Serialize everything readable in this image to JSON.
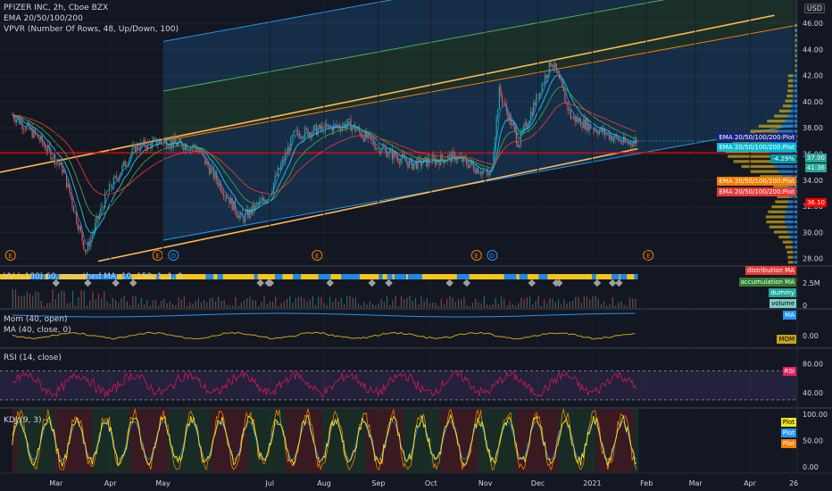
{
  "header": {
    "symbol_line": "PFIZER INC, 2h, Cboe BZX",
    "ema_line": "EMA 20/50/100/200",
    "vpvr_line": "VPVR (Number Of Rows, 48, Up/Down, 100)",
    "currency": "USD"
  },
  "indicators": {
    "volume_line": "VV (c180) 60, smoothed MA, 10, 150, 1, 1, 0",
    "mom_line": "Mom (40, open)",
    "ma_line": "MA (40, close, 0)",
    "rsi_line": "RSI (14, close)",
    "kdj_line": "KDJ (9, 3)"
  },
  "right_tags": {
    "ema1": "EMA 20/50/100/200:Plot",
    "ema2": "EMA 20/50/100/200:Plot",
    "pct": "-4.29%",
    "price": "37.00",
    "time": "41:36",
    "ema3": "EMA 20/50/100/200:Plot",
    "ema4": "EMA 20/50/100/200:Plot",
    "red": "36.10",
    "dist": "distribution MA",
    "accum": "accumulation MA",
    "dummy": "dummy",
    "vol": "volume",
    "ma": "MA",
    "mom": "MOM",
    "rsi": "RSI",
    "plot1": "Plot",
    "plot2": "Plot",
    "plot3": "Plot"
  },
  "colors": {
    "background": "#131722",
    "candle_up": "#26a69a",
    "candle_down": "#ef5350",
    "channel": "#2196f3",
    "trend": "#f57c00",
    "support": "#ff0000"
  },
  "chart_data": [
    {
      "type": "candlestick",
      "title": "PFIZER INC, 2h, Cboe BZX",
      "y_axis_ticks": [
        "46.00",
        "44.00",
        "42.00",
        "40.00",
        "38.00",
        "36.00",
        "34.00",
        "32.00",
        "30.00",
        "28.00"
      ],
      "ylim": [
        27.5,
        47.5
      ],
      "x_axis_ticks": [
        "Mar",
        "Apr",
        "May",
        "Jul",
        "Aug",
        "Sep",
        "Oct",
        "Nov",
        "Dec",
        "2021",
        "Feb",
        "Mar",
        "Apr",
        "26"
      ],
      "anchors": [
        {
          "x": "2020-02-05",
          "y": 39.0
        },
        {
          "x": "2020-02-20",
          "y": 37.2
        },
        {
          "x": "2020-03-05",
          "y": 34.8
        },
        {
          "x": "2020-03-18",
          "y": 28.5
        },
        {
          "x": "2020-03-30",
          "y": 33.0
        },
        {
          "x": "2020-04-15",
          "y": 36.5
        },
        {
          "x": "2020-05-01",
          "y": 37.0
        },
        {
          "x": "2020-05-20",
          "y": 36.5
        },
        {
          "x": "2020-06-15",
          "y": 31.0
        },
        {
          "x": "2020-06-30",
          "y": 32.8
        },
        {
          "x": "2020-07-15",
          "y": 37.5
        },
        {
          "x": "2020-08-15",
          "y": 38.3
        },
        {
          "x": "2020-09-01",
          "y": 36.5
        },
        {
          "x": "2020-09-20",
          "y": 35.2
        },
        {
          "x": "2020-10-15",
          "y": 35.8
        },
        {
          "x": "2020-11-04",
          "y": 34.3
        },
        {
          "x": "2020-11-09",
          "y": 40.8
        },
        {
          "x": "2020-11-20",
          "y": 36.8
        },
        {
          "x": "2020-12-09",
          "y": 43.2
        },
        {
          "x": "2020-12-20",
          "y": 38.8
        },
        {
          "x": "2021-01-05",
          "y": 37.8
        },
        {
          "x": "2021-01-20",
          "y": 36.8
        },
        {
          "x": "2021-01-27",
          "y": 37.0
        }
      ],
      "last_price": 37.0,
      "horizontal_level": 36.1,
      "channel": {
        "start": {
          "x": "2020-05-01",
          "y": 37.0
        },
        "end": {
          "x": "2021-04-22",
          "y": 45.7
        },
        "offset": 7.6,
        "extends_right": true
      },
      "trendlines": [
        {
          "start": {
            "x": "2020-01-29",
            "y": 34.6
          },
          "end": {
            "x": "2021-04-15",
            "y": 46.6
          }
        },
        {
          "start": {
            "x": "2020-03-25",
            "y": 27.8
          },
          "end": {
            "x": "2021-01-27",
            "y": 36.4
          }
        }
      ],
      "earnings_markers": [
        "2020-02-04",
        "2020-04-28",
        "2020-07-28",
        "2020-10-27",
        "2021-02-02"
      ],
      "dividend_markers": [
        "2020-05-07",
        "2020-11-05"
      ],
      "moving_averages": [
        "EMA 20",
        "EMA 50",
        "EMA 100",
        "EMA 200"
      ]
    },
    {
      "type": "area",
      "title": "VV (c180) 60, smoothed MA, 10, 150, 1, 1, 0",
      "y_axis_ticks": [
        "2.5M",
        "0"
      ]
    },
    {
      "type": "line",
      "title": "Mom (40, open)",
      "y_axis_ticks": [
        "0.00"
      ],
      "series": [
        {
          "name": "MA"
        },
        {
          "name": "MOM"
        }
      ]
    },
    {
      "type": "line",
      "title": "RSI (14, close)",
      "y_axis_ticks": [
        "80.00",
        "40.00"
      ],
      "bands": [
        30,
        70
      ]
    },
    {
      "type": "line",
      "title": "KDJ (9, 3)",
      "y_axis_ticks": [
        "100.00",
        "50.00",
        "0.00"
      ],
      "series": [
        {
          "name": "Plot"
        },
        {
          "name": "Plot"
        },
        {
          "name": "Plot"
        }
      ]
    }
  ]
}
